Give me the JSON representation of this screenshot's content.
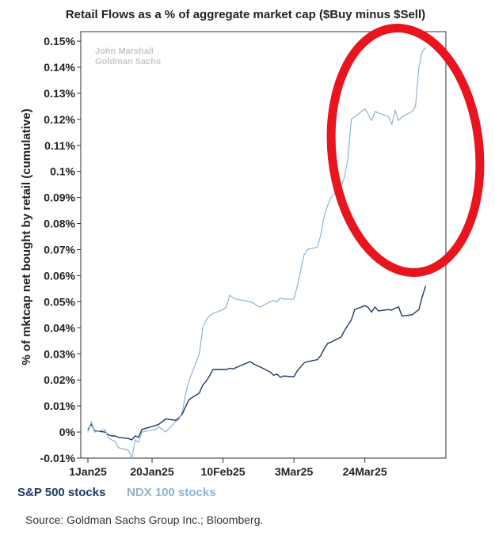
{
  "chart_data": {
    "type": "line",
    "title": "Retail Flows as a % of aggregate market cap ($Buy minus $Sell)",
    "ylabel": "% of mktcap net bought by retail (cumulative)",
    "xlabel": "",
    "ylim": [
      -0.01,
      0.15
    ],
    "yticks": [
      {
        "value": 0.15,
        "label": "0.15%"
      },
      {
        "value": 0.14,
        "label": "0.14%"
      },
      {
        "value": 0.13,
        "label": "0.13%"
      },
      {
        "value": 0.12,
        "label": "0.12%"
      },
      {
        "value": 0.11,
        "label": "0.11%"
      },
      {
        "value": 0.1,
        "label": "0.1%"
      },
      {
        "value": 0.09,
        "label": "0.09%"
      },
      {
        "value": 0.08,
        "label": "0.08%"
      },
      {
        "value": 0.07,
        "label": "0.07%"
      },
      {
        "value": 0.06,
        "label": "0.06%"
      },
      {
        "value": 0.05,
        "label": "0.05%"
      },
      {
        "value": 0.04,
        "label": "0.04%"
      },
      {
        "value": 0.03,
        "label": "0.03%"
      },
      {
        "value": 0.02,
        "label": "0.02%"
      },
      {
        "value": 0.01,
        "label": "0.01%"
      },
      {
        "value": 0.0,
        "label": "0%"
      },
      {
        "value": -0.01,
        "label": "-0.01%"
      }
    ],
    "xlim": [
      "2025-01-01",
      "2025-04-17"
    ],
    "xticks": [
      {
        "date": "2025-01-01",
        "label": "1Jan25"
      },
      {
        "date": "2025-01-20",
        "label": "20Jan25"
      },
      {
        "date": "2025-02-10",
        "label": "10Feb25"
      },
      {
        "date": "2025-03-03",
        "label": "3Mar25"
      },
      {
        "date": "2025-03-24",
        "label": "24Mar25"
      }
    ],
    "grid": false,
    "legend": "bottom-left",
    "watermark": [
      "John Marshall",
      "Goldman Sachs"
    ],
    "series": [
      {
        "name": "S&P 500 stocks",
        "color": "#1f3864",
        "points": [
          [
            "2025-01-01",
            0.001
          ],
          [
            "2025-01-02",
            0.003
          ],
          [
            "2025-01-03",
            0.0005
          ],
          [
            "2025-01-06",
            0.0
          ],
          [
            "2025-01-07",
            -0.001
          ],
          [
            "2025-01-08",
            -0.0015
          ],
          [
            "2025-01-09",
            -0.0015
          ],
          [
            "2025-01-10",
            -0.002
          ],
          [
            "2025-01-13",
            -0.0025
          ],
          [
            "2025-01-14",
            -0.003
          ],
          [
            "2025-01-15",
            -0.0015
          ],
          [
            "2025-01-16",
            -0.002
          ],
          [
            "2025-01-17",
            0.001
          ],
          [
            "2025-01-21",
            0.0025
          ],
          [
            "2025-01-22",
            0.003
          ],
          [
            "2025-01-23",
            0.004
          ],
          [
            "2025-01-24",
            0.005
          ],
          [
            "2025-01-27",
            0.0045
          ],
          [
            "2025-01-28",
            0.0055
          ],
          [
            "2025-01-29",
            0.007
          ],
          [
            "2025-01-30",
            0.01
          ],
          [
            "2025-01-31",
            0.0125
          ],
          [
            "2025-02-03",
            0.015
          ],
          [
            "2025-02-04",
            0.018
          ],
          [
            "2025-02-05",
            0.0195
          ],
          [
            "2025-02-06",
            0.0215
          ],
          [
            "2025-02-07",
            0.024
          ],
          [
            "2025-02-10",
            0.024
          ],
          [
            "2025-02-11",
            0.024
          ],
          [
            "2025-02-12",
            0.0245
          ],
          [
            "2025-02-13",
            0.0242
          ],
          [
            "2025-02-14",
            0.0248
          ],
          [
            "2025-02-18",
            0.027
          ],
          [
            "2025-02-19",
            0.0262
          ],
          [
            "2025-02-20",
            0.0255
          ],
          [
            "2025-02-21",
            0.025
          ],
          [
            "2025-02-24",
            0.023
          ],
          [
            "2025-02-25",
            0.0218
          ],
          [
            "2025-02-26",
            0.0222
          ],
          [
            "2025-02-27",
            0.021
          ],
          [
            "2025-02-28",
            0.0215
          ],
          [
            "2025-03-03",
            0.0212
          ],
          [
            "2025-03-04",
            0.0235
          ],
          [
            "2025-03-05",
            0.025
          ],
          [
            "2025-03-06",
            0.0265
          ],
          [
            "2025-03-07",
            0.027
          ],
          [
            "2025-03-10",
            0.0278
          ],
          [
            "2025-03-11",
            0.0295
          ],
          [
            "2025-03-12",
            0.032
          ],
          [
            "2025-03-13",
            0.034
          ],
          [
            "2025-03-14",
            0.0345
          ],
          [
            "2025-03-17",
            0.0365
          ],
          [
            "2025-03-18",
            0.039
          ],
          [
            "2025-03-19",
            0.041
          ],
          [
            "2025-03-20",
            0.043
          ],
          [
            "2025-03-21",
            0.047
          ],
          [
            "2025-03-24",
            0.0485
          ],
          [
            "2025-03-25",
            0.0478
          ],
          [
            "2025-03-26",
            0.046
          ],
          [
            "2025-03-27",
            0.048
          ],
          [
            "2025-03-28",
            0.0465
          ],
          [
            "2025-03-31",
            0.047
          ],
          [
            "2025-04-01",
            0.0468
          ],
          [
            "2025-04-02",
            0.0475
          ],
          [
            "2025-04-03",
            0.048
          ],
          [
            "2025-04-04",
            0.0445
          ],
          [
            "2025-04-07",
            0.045
          ],
          [
            "2025-04-08",
            0.046
          ],
          [
            "2025-04-09",
            0.047
          ],
          [
            "2025-04-10",
            0.052
          ],
          [
            "2025-04-11",
            0.056
          ]
        ]
      },
      {
        "name": "NDX 100 stocks",
        "color": "#8fb4cf",
        "points": [
          [
            "2025-01-01",
            0.0
          ],
          [
            "2025-01-02",
            0.004
          ],
          [
            "2025-01-03",
            0.0
          ],
          [
            "2025-01-06",
            0.001
          ],
          [
            "2025-01-07",
            -0.002
          ],
          [
            "2025-01-08",
            -0.003
          ],
          [
            "2025-01-09",
            -0.0035
          ],
          [
            "2025-01-10",
            -0.006
          ],
          [
            "2025-01-13",
            -0.007
          ],
          [
            "2025-01-14",
            -0.01
          ],
          [
            "2025-01-15",
            -0.003
          ],
          [
            "2025-01-16",
            -0.004
          ],
          [
            "2025-01-17",
            0.0
          ],
          [
            "2025-01-21",
            0.001
          ],
          [
            "2025-01-22",
            0.002
          ],
          [
            "2025-01-23",
            0.001
          ],
          [
            "2025-01-24",
            0.0
          ],
          [
            "2025-01-27",
            0.004
          ],
          [
            "2025-01-28",
            0.005
          ],
          [
            "2025-01-29",
            0.008
          ],
          [
            "2025-01-30",
            0.015
          ],
          [
            "2025-01-31",
            0.02
          ],
          [
            "2025-02-03",
            0.03
          ],
          [
            "2025-02-04",
            0.04
          ],
          [
            "2025-02-05",
            0.043
          ],
          [
            "2025-02-06",
            0.0445
          ],
          [
            "2025-02-07",
            0.0455
          ],
          [
            "2025-02-10",
            0.047
          ],
          [
            "2025-02-11",
            0.048
          ],
          [
            "2025-02-12",
            0.0525
          ],
          [
            "2025-02-13",
            0.0515
          ],
          [
            "2025-02-14",
            0.051
          ],
          [
            "2025-02-18",
            0.05
          ],
          [
            "2025-02-19",
            0.0495
          ],
          [
            "2025-02-20",
            0.0485
          ],
          [
            "2025-02-21",
            0.048
          ],
          [
            "2025-02-24",
            0.05
          ],
          [
            "2025-02-25",
            0.0505
          ],
          [
            "2025-02-26",
            0.05
          ],
          [
            "2025-02-27",
            0.0515
          ],
          [
            "2025-02-28",
            0.051
          ],
          [
            "2025-03-03",
            0.051
          ],
          [
            "2025-03-04",
            0.056
          ],
          [
            "2025-03-05",
            0.062
          ],
          [
            "2025-03-06",
            0.068
          ],
          [
            "2025-03-07",
            0.07
          ],
          [
            "2025-03-10",
            0.071
          ],
          [
            "2025-03-11",
            0.076
          ],
          [
            "2025-03-12",
            0.083
          ],
          [
            "2025-03-13",
            0.087
          ],
          [
            "2025-03-14",
            0.09
          ],
          [
            "2025-03-17",
            0.094
          ],
          [
            "2025-03-18",
            0.098
          ],
          [
            "2025-03-19",
            0.105
          ],
          [
            "2025-03-20",
            0.12
          ],
          [
            "2025-03-21",
            0.121
          ],
          [
            "2025-03-24",
            0.124
          ],
          [
            "2025-03-25",
            0.122
          ],
          [
            "2025-03-26",
            0.1195
          ],
          [
            "2025-03-27",
            0.123
          ],
          [
            "2025-03-28",
            0.1225
          ],
          [
            "2025-03-31",
            0.121
          ],
          [
            "2025-04-01",
            0.118
          ],
          [
            "2025-04-02",
            0.1235
          ],
          [
            "2025-04-03",
            0.1195
          ],
          [
            "2025-04-04",
            0.121
          ],
          [
            "2025-04-07",
            0.123
          ],
          [
            "2025-04-08",
            0.125
          ],
          [
            "2025-04-09",
            0.14
          ],
          [
            "2025-04-10",
            0.146
          ],
          [
            "2025-04-11",
            0.1475
          ]
        ]
      }
    ]
  },
  "annotation": {
    "color": "#e8141e"
  },
  "source": "Source: Goldman Sachs Group Inc.; Bloomberg."
}
